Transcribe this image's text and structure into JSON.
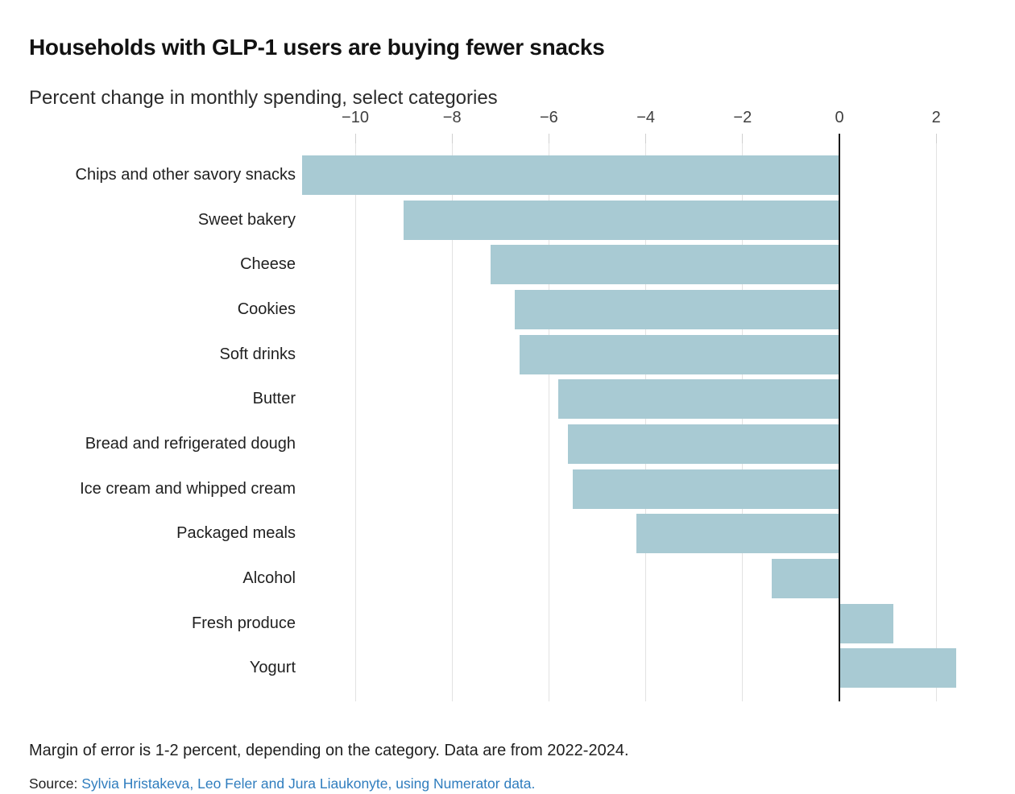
{
  "header": {
    "title": "Households with GLP-1 users are buying fewer snacks",
    "subtitle": "Percent change in monthly spending, select categories"
  },
  "chart_data": {
    "type": "bar",
    "orientation": "horizontal",
    "title": "Households with GLP-1 users are buying fewer snacks",
    "subtitle": "Percent change in monthly spending, select categories",
    "xlabel": "",
    "ylabel": "",
    "categories": [
      "Chips and other savory snacks",
      "Sweet bakery",
      "Cheese",
      "Cookies",
      "Soft drinks",
      "Butter",
      "Bread and refrigerated dough",
      "Ice cream and whipped cream",
      "Packaged meals",
      "Alcohol",
      "Fresh produce",
      "Yogurt"
    ],
    "values": [
      -11.1,
      -9.0,
      -7.2,
      -6.7,
      -6.6,
      -5.8,
      -5.6,
      -5.5,
      -4.2,
      -1.4,
      1.1,
      2.4
    ],
    "x_ticks": [
      -10,
      -8,
      -6,
      -4,
      -2,
      0,
      2
    ],
    "x_tick_labels": [
      "−10",
      "−8",
      "−6",
      "−4",
      "−2",
      "0",
      "2"
    ],
    "xlim": [
      -11.7,
      3.1
    ],
    "grid": true,
    "legend": "none",
    "bar_color": "#a8cad3",
    "gridline_color": "#e2e2e2",
    "zero_line_color": "#1a1a1a"
  },
  "footer": {
    "note": "Margin of error is 1-2 percent, depending on the category. Data are from 2022-2024.",
    "source_label": "Source:",
    "source_link": "Sylvia Hristakeva, Leo Feler and Jura Liaukonyte, using Numerator data.",
    "link_color": "#2f7dbe"
  }
}
